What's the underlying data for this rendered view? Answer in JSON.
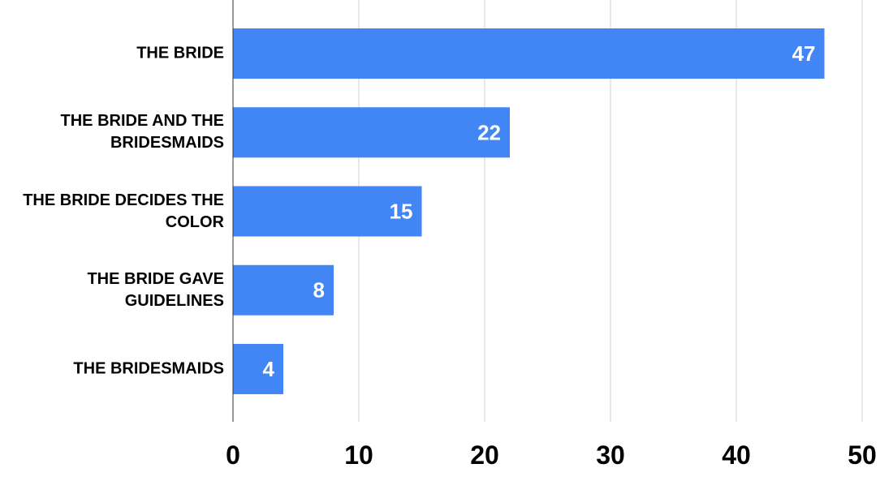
{
  "chart_data": {
    "type": "bar",
    "orientation": "horizontal",
    "categories": [
      "THE BRIDE",
      "THE BRIDE AND THE BRIDESMAIDS",
      "THE BRIDE DECIDES THE COLOR",
      "THE BRIDE GAVE GUIDELINES",
      "THE BRIDESMAIDS"
    ],
    "values": [
      47,
      22,
      15,
      8,
      4
    ],
    "color": "#4285f4",
    "xlim": [
      0,
      50
    ],
    "xticks": [
      0,
      10,
      20,
      30,
      40,
      50
    ],
    "grid": true,
    "data_labels": true
  }
}
